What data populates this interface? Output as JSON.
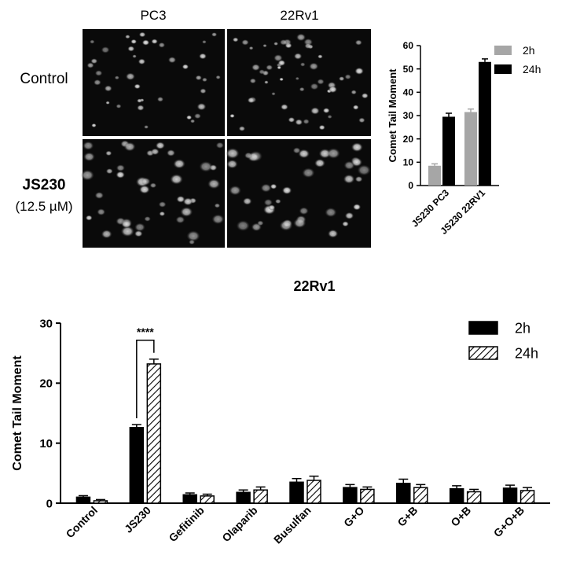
{
  "micrographs": {
    "columns": [
      "PC3",
      "22Rv1"
    ],
    "rows": [
      {
        "label": "Control",
        "sublabel": ""
      },
      {
        "label": "JS230",
        "sublabel": "(12.5 µM)"
      }
    ]
  },
  "chart_data": [
    {
      "type": "bar",
      "title": "",
      "xlabel": "",
      "ylabel": "Comet Tail Moment",
      "ylim": [
        0,
        60
      ],
      "yticks": [
        0,
        10,
        20,
        30,
        40,
        50,
        60
      ],
      "categories": [
        "JS230 PC3",
        "JS230 22RV1"
      ],
      "series": [
        {
          "name": "2h",
          "values": [
            8.5,
            31.5
          ],
          "errors": [
            0.8,
            1.3
          ],
          "color": "#a6a6a6"
        },
        {
          "name": "24h",
          "values": [
            29.5,
            53
          ],
          "errors": [
            1.5,
            1.3
          ],
          "color": "#000000"
        }
      ],
      "legend": "top-right",
      "grid": false
    },
    {
      "type": "bar",
      "title": "22Rv1",
      "xlabel": "",
      "ylabel": "Comet Tail Moment",
      "ylim": [
        0,
        30
      ],
      "yticks": [
        0,
        10,
        20,
        30
      ],
      "categories": [
        "Control",
        "JS230",
        "Gefitinib",
        "Olaparib",
        "Busulfan",
        "G+O",
        "G+B",
        "O+B",
        "G+O+B"
      ],
      "series": [
        {
          "name": "2h",
          "values": [
            1.0,
            12.6,
            1.4,
            1.8,
            3.5,
            2.6,
            3.3,
            2.4,
            2.5
          ],
          "errors": [
            0.25,
            0.5,
            0.3,
            0.4,
            0.6,
            0.5,
            0.7,
            0.5,
            0.5
          ],
          "fill": "solid",
          "color": "#000000"
        },
        {
          "name": "24h",
          "values": [
            0.4,
            23.2,
            1.2,
            2.2,
            3.8,
            2.3,
            2.6,
            1.9,
            2.1
          ],
          "errors": [
            0.2,
            0.8,
            0.3,
            0.5,
            0.7,
            0.4,
            0.5,
            0.4,
            0.5
          ],
          "fill": "hatched",
          "color": "#000000"
        }
      ],
      "annotations": [
        {
          "text": "****",
          "between": [
            "JS230 2h",
            "JS230 24h"
          ]
        }
      ],
      "legend": "top-right",
      "grid": false
    }
  ]
}
